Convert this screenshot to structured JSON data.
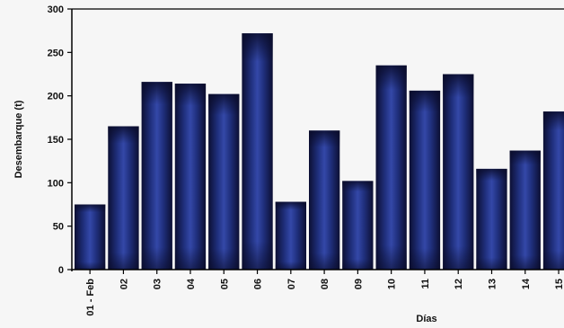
{
  "chart_data": {
    "type": "bar",
    "xlabel": "Días",
    "ylabel": "Desembarque (t)",
    "ylim": [
      0,
      300
    ],
    "yticks": [
      "0",
      "50",
      "100",
      "150",
      "200",
      "250",
      "300"
    ],
    "categories": [
      "01 - Feb",
      "02",
      "03",
      "04",
      "05",
      "06",
      "07",
      "08",
      "09",
      "10",
      "11",
      "12",
      "13",
      "14",
      "15"
    ],
    "values": [
      75,
      165,
      216,
      214,
      202,
      272,
      78,
      160,
      102,
      235,
      206,
      225,
      116,
      137,
      182
    ],
    "grid": false,
    "legend": "none",
    "colors": {
      "bar_edge": "#0c0f33",
      "bar_center": "#3448a8",
      "axis": "#000000",
      "background": "#f6f6f6"
    }
  }
}
